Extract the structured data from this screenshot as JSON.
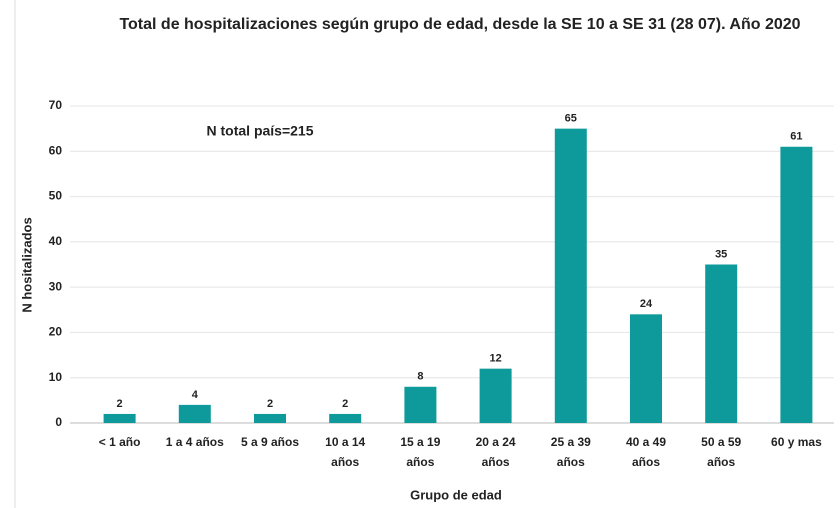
{
  "chart_data": {
    "type": "bar",
    "title": "Total de hospitalizaciones según grupo de edad, desde la SE 10 a SE 31 (28 07). Año 2020",
    "annotation": "N total país=215",
    "x_label": "Grupo de edad",
    "y_label": "N hositalizados",
    "categories": [
      "< 1 año",
      "1 a 4 años",
      "5 a 9 años",
      "10 a 14 años",
      "15 a 19 años",
      "20 a 24 años",
      "25 a 39 años",
      "40 a 49 años",
      "50 a 59 años",
      "60 y mas"
    ],
    "values": [
      2,
      4,
      2,
      2,
      8,
      12,
      65,
      24,
      35,
      61
    ],
    "color": "#0e9a9a",
    "ylim": [
      0,
      70
    ],
    "yticks": [
      0,
      10,
      20,
      30,
      40,
      50,
      60,
      70
    ],
    "grid": true
  }
}
